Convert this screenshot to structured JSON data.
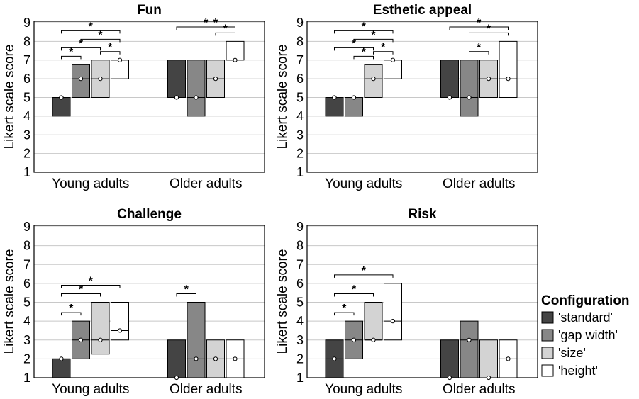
{
  "chart_data": [
    {
      "type": "box",
      "title": "Fun",
      "ylabel": "Likert scale score",
      "ylim": [
        1,
        9
      ],
      "yticks": [
        "1",
        "2",
        "3",
        "4",
        "5",
        "6",
        "7",
        "8",
        "9"
      ],
      "categories": [
        "Young adults",
        "Older adults"
      ],
      "series": [
        {
          "name": "'standard'",
          "boxes": [
            {
              "q1": 4,
              "median": 5,
              "q3": 5,
              "mean": 5
            },
            {
              "q1": 5,
              "median": 5,
              "q3": 7,
              "mean": 5
            }
          ]
        },
        {
          "name": "'gap width'",
          "boxes": [
            {
              "q1": 5,
              "median": 6,
              "q3": 6.75,
              "mean": 6
            },
            {
              "q1": 4,
              "median": 5,
              "q3": 7,
              "mean": 5
            }
          ]
        },
        {
          "name": "'size'",
          "boxes": [
            {
              "q1": 5,
              "median": 6,
              "q3": 7,
              "mean": 6
            },
            {
              "q1": 5,
              "median": 6,
              "q3": 7,
              "mean": 6
            }
          ]
        },
        {
          "name": "'height'",
          "boxes": [
            {
              "q1": 6,
              "median": 7,
              "q3": 7,
              "mean": 7
            },
            {
              "q1": 7,
              "median": 7,
              "q3": 8,
              "mean": 7
            }
          ]
        }
      ],
      "significance": [
        {
          "group": 0,
          "from": 0,
          "to": 1,
          "label": "*"
        },
        {
          "group": 0,
          "from": 0,
          "to": 2,
          "label": "*"
        },
        {
          "group": 0,
          "from": 0,
          "to": 3,
          "label": "*"
        },
        {
          "group": 0,
          "from": 1,
          "to": 3,
          "label": "*"
        },
        {
          "group": 0,
          "from": 2,
          "to": 3,
          "label": "*"
        },
        {
          "group": 1,
          "from": 0,
          "to": 3,
          "label": "*"
        },
        {
          "group": 1,
          "from": 1,
          "to": 3,
          "label": "*"
        },
        {
          "group": 1,
          "from": 2,
          "to": 3,
          "label": "*"
        }
      ]
    },
    {
      "type": "box",
      "title": "Esthetic appeal",
      "ylabel": "Likert scale score",
      "ylim": [
        1,
        9
      ],
      "yticks": [
        "1",
        "2",
        "3",
        "4",
        "5",
        "6",
        "7",
        "8",
        "9"
      ],
      "categories": [
        "Young adults",
        "Older adults"
      ],
      "series": [
        {
          "name": "'standard'",
          "boxes": [
            {
              "q1": 4,
              "median": 5,
              "q3": 5,
              "mean": 5
            },
            {
              "q1": 5,
              "median": 5,
              "q3": 7,
              "mean": 5
            }
          ]
        },
        {
          "name": "'gap width'",
          "boxes": [
            {
              "q1": 4,
              "median": 5,
              "q3": 5,
              "mean": 5
            },
            {
              "q1": 4,
              "median": 5,
              "q3": 7,
              "mean": 5
            }
          ]
        },
        {
          "name": "'size'",
          "boxes": [
            {
              "q1": 5,
              "median": 6,
              "q3": 6.75,
              "mean": 6
            },
            {
              "q1": 5,
              "median": 6,
              "q3": 7,
              "mean": 6
            }
          ]
        },
        {
          "name": "'height'",
          "boxes": [
            {
              "q1": 6,
              "median": 7,
              "q3": 7,
              "mean": 7
            },
            {
              "q1": 5,
              "median": 6,
              "q3": 8,
              "mean": 6
            }
          ]
        }
      ],
      "significance": [
        {
          "group": 0,
          "from": 0,
          "to": 2,
          "label": "*"
        },
        {
          "group": 0,
          "from": 0,
          "to": 3,
          "label": "*"
        },
        {
          "group": 0,
          "from": 1,
          "to": 2,
          "label": "*"
        },
        {
          "group": 0,
          "from": 1,
          "to": 3,
          "label": "*"
        },
        {
          "group": 0,
          "from": 2,
          "to": 3,
          "label": "*"
        },
        {
          "group": 1,
          "from": 0,
          "to": 3,
          "label": "*"
        },
        {
          "group": 1,
          "from": 1,
          "to": 3,
          "label": "*"
        },
        {
          "group": 1,
          "from": 1,
          "to": 2,
          "label": "*"
        }
      ]
    },
    {
      "type": "box",
      "title": "Challenge",
      "ylabel": "Likert scale score",
      "ylim": [
        1,
        9
      ],
      "yticks": [
        "1",
        "2",
        "3",
        "4",
        "5",
        "6",
        "7",
        "8",
        "9"
      ],
      "categories": [
        "Young adults",
        "Older adults"
      ],
      "series": [
        {
          "name": "'standard'",
          "boxes": [
            {
              "q1": 1,
              "median": 2,
              "q3": 2,
              "mean": 2
            },
            {
              "q1": 1,
              "median": 1,
              "q3": 3,
              "mean": 1
            }
          ]
        },
        {
          "name": "'gap width'",
          "boxes": [
            {
              "q1": 2,
              "median": 3,
              "q3": 4,
              "mean": 3
            },
            {
              "q1": 1,
              "median": 2,
              "q3": 5,
              "mean": 2
            }
          ]
        },
        {
          "name": "'size'",
          "boxes": [
            {
              "q1": 2.25,
              "median": 3,
              "q3": 5,
              "mean": 3
            },
            {
              "q1": 1,
              "median": 2,
              "q3": 3,
              "mean": 2
            }
          ]
        },
        {
          "name": "'height'",
          "boxes": [
            {
              "q1": 3,
              "median": 3.5,
              "q3": 5,
              "mean": 3.5
            },
            {
              "q1": 1,
              "median": 2,
              "q3": 3,
              "mean": 2
            }
          ]
        }
      ],
      "significance": [
        {
          "group": 0,
          "from": 0,
          "to": 1,
          "label": "*"
        },
        {
          "group": 0,
          "from": 0,
          "to": 2,
          "label": "*"
        },
        {
          "group": 0,
          "from": 0,
          "to": 3,
          "label": "*"
        },
        {
          "group": 1,
          "from": 0,
          "to": 1,
          "label": "*"
        }
      ]
    },
    {
      "type": "box",
      "title": "Risk",
      "ylabel": "Likert scale score",
      "ylim": [
        1,
        9
      ],
      "yticks": [
        "1",
        "2",
        "3",
        "4",
        "5",
        "6",
        "7",
        "8",
        "9"
      ],
      "categories": [
        "Young adults",
        "Older adults"
      ],
      "series": [
        {
          "name": "'standard'",
          "boxes": [
            {
              "q1": 1,
              "median": 2,
              "q3": 3,
              "mean": 2
            },
            {
              "q1": 1,
              "median": 1,
              "q3": 3,
              "mean": 1
            }
          ]
        },
        {
          "name": "'gap width'",
          "boxes": [
            {
              "q1": 2,
              "median": 3,
              "q3": 4,
              "mean": 3
            },
            {
              "q1": 1,
              "median": 3,
              "q3": 4,
              "mean": 3
            }
          ]
        },
        {
          "name": "'size'",
          "boxes": [
            {
              "q1": 3,
              "median": 3,
              "q3": 5,
              "mean": 3
            },
            {
              "q1": 1,
              "median": 1,
              "q3": 3,
              "mean": 1
            }
          ]
        },
        {
          "name": "'height'",
          "boxes": [
            {
              "q1": 3,
              "median": 4,
              "q3": 6,
              "mean": 4
            },
            {
              "q1": 1,
              "median": 2,
              "q3": 3,
              "mean": 2
            }
          ]
        }
      ],
      "significance": [
        {
          "group": 0,
          "from": 0,
          "to": 1,
          "label": "*"
        },
        {
          "group": 0,
          "from": 0,
          "to": 2,
          "label": "*"
        },
        {
          "group": 0,
          "from": 0,
          "to": 3,
          "label": "*"
        }
      ]
    }
  ],
  "legend": {
    "title": "Configuration",
    "placement": "bottom-right",
    "items": [
      {
        "label": "'standard'",
        "color": "#444444"
      },
      {
        "label": "'gap width'",
        "color": "#878787"
      },
      {
        "label": "'size'",
        "color": "#d3d3d3"
      },
      {
        "label": "'height'",
        "color": "#ffffff"
      }
    ]
  },
  "colors": {
    "grid": "#c8c8c8",
    "stroke": "#000000"
  }
}
